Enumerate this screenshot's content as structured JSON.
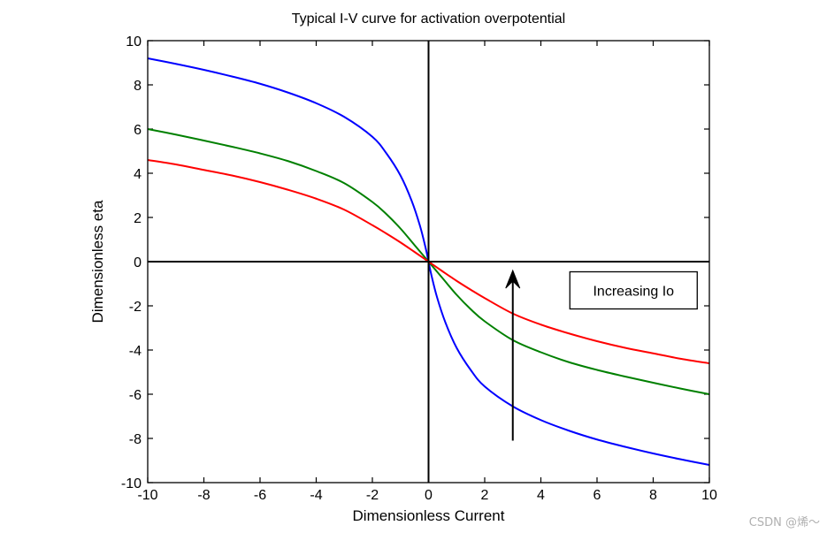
{
  "chart_data": {
    "type": "line",
    "title": "Typical I-V curve for activation overpotential",
    "xlabel": "Dimensionless Current",
    "ylabel": "Dimensionless eta",
    "xlim": [
      -10,
      10
    ],
    "ylim": [
      -10,
      10
    ],
    "xticks": [
      -10,
      -8,
      -6,
      -4,
      -2,
      0,
      2,
      4,
      6,
      8,
      10
    ],
    "yticks": [
      -10,
      -8,
      -6,
      -4,
      -2,
      0,
      2,
      4,
      6,
      8,
      10
    ],
    "grid": false,
    "series": [
      {
        "name": "blue",
        "color": "#0000ff",
        "x": [
          -10,
          -9,
          -8,
          -7,
          -6,
          -5,
          -4,
          -3,
          -2,
          -1.5,
          -1,
          -0.6,
          -0.3,
          -0.1,
          0,
          0.1,
          0.3,
          0.6,
          1,
          1.5,
          2,
          3,
          4,
          5,
          6,
          7,
          8,
          9,
          10
        ],
        "y": [
          9.2,
          8.95,
          8.68,
          8.38,
          8.05,
          7.65,
          7.17,
          6.55,
          5.65,
          4.9,
          3.9,
          2.75,
          1.6,
          0.6,
          0,
          -0.6,
          -1.6,
          -2.75,
          -3.9,
          -4.9,
          -5.65,
          -6.55,
          -7.17,
          -7.65,
          -8.05,
          -8.38,
          -8.68,
          -8.95,
          -9.2
        ]
      },
      {
        "name": "green",
        "color": "#008000",
        "x": [
          -10,
          -9,
          -8,
          -7,
          -6,
          -5,
          -4,
          -3,
          -2,
          -1.5,
          -1,
          -0.5,
          0,
          0.5,
          1,
          1.5,
          2,
          3,
          4,
          5,
          6,
          7,
          8,
          9,
          10
        ],
        "y": [
          6.0,
          5.75,
          5.48,
          5.2,
          4.9,
          4.55,
          4.1,
          3.55,
          2.7,
          2.15,
          1.5,
          0.75,
          0,
          -0.75,
          -1.5,
          -2.15,
          -2.7,
          -3.55,
          -4.1,
          -4.55,
          -4.9,
          -5.2,
          -5.48,
          -5.75,
          -6.0
        ]
      },
      {
        "name": "red",
        "color": "#ff0000",
        "x": [
          -10,
          -9,
          -8,
          -7,
          -6,
          -5,
          -4,
          -3,
          -2,
          -1.5,
          -1,
          -0.5,
          0,
          0.5,
          1,
          1.5,
          2,
          3,
          4,
          5,
          6,
          7,
          8,
          9,
          10
        ],
        "y": [
          4.6,
          4.4,
          4.15,
          3.9,
          3.6,
          3.25,
          2.85,
          2.35,
          1.65,
          1.27,
          0.87,
          0.44,
          0,
          -0.44,
          -0.87,
          -1.27,
          -1.65,
          -2.35,
          -2.85,
          -3.25,
          -3.6,
          -3.9,
          -4.15,
          -4.4,
          -4.6
        ]
      }
    ],
    "annotations": {
      "arrow": {
        "x": 3,
        "y_from": -8.1,
        "y_to": -0.4
      },
      "label": "Increasing Io",
      "label_x": 7.3,
      "label_y": -1.3
    }
  },
  "watermark": "CSDN @烯～"
}
